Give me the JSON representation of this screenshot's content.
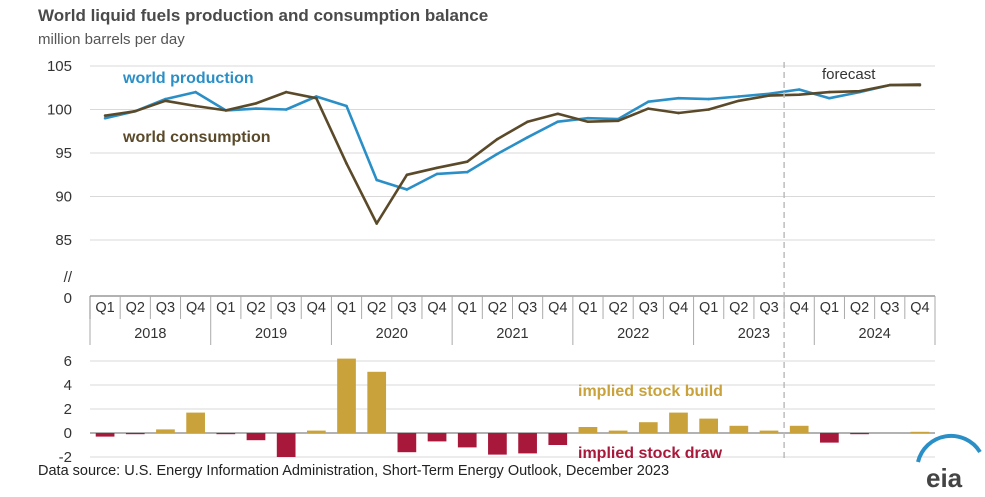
{
  "title": "World liquid fuels production and consumption balance",
  "subtitle": "million barrels per day",
  "source": "Data source: U.S. Energy Information Administration, Short-Term Energy Outlook, December 2023",
  "logo_text": "eia",
  "colors": {
    "production": "#2b8fc7",
    "consumption": "#5a4a2a",
    "build": "#c9a23c",
    "draw": "#a8183b",
    "grid": "#d9d9d9",
    "forecast_line": "#b8b8b8"
  },
  "chart_data": [
    {
      "type": "line",
      "ylim": [
        85,
        105
      ],
      "yticks": [
        "105",
        "100",
        "95",
        "90",
        "85"
      ],
      "break_label": "//",
      "zero_label": "0",
      "categories": [
        "Q1",
        "Q2",
        "Q3",
        "Q4",
        "Q1",
        "Q2",
        "Q3",
        "Q4",
        "Q1",
        "Q2",
        "Q3",
        "Q4",
        "Q1",
        "Q2",
        "Q3",
        "Q4",
        "Q1",
        "Q2",
        "Q3",
        "Q4",
        "Q1",
        "Q2",
        "Q3",
        "Q4",
        "Q1",
        "Q2",
        "Q3",
        "Q4"
      ],
      "years": [
        "2018",
        "2019",
        "2020",
        "2021",
        "2022",
        "2023",
        "2024"
      ],
      "forecast_label": "forecast",
      "forecast_start_index": 23,
      "series": [
        {
          "name": "world production",
          "values": [
            99.0,
            99.8,
            101.2,
            102.0,
            99.9,
            100.1,
            100.0,
            101.5,
            100.4,
            91.9,
            90.8,
            92.6,
            92.8,
            94.9,
            96.8,
            98.6,
            99.0,
            98.9,
            100.9,
            101.3,
            101.2,
            101.5,
            101.8,
            102.3,
            101.3,
            102.0,
            102.8,
            102.9
          ]
        },
        {
          "name": "world consumption",
          "values": [
            99.3,
            99.8,
            101.0,
            100.4,
            99.9,
            100.7,
            102.0,
            101.3,
            93.8,
            86.9,
            92.5,
            93.3,
            94.0,
            96.6,
            98.6,
            99.5,
            98.6,
            98.7,
            100.1,
            99.6,
            100.0,
            101.0,
            101.6,
            101.7,
            102.0,
            102.1,
            102.8,
            102.8
          ]
        }
      ]
    },
    {
      "type": "bar",
      "ylim": [
        -2,
        6
      ],
      "yticks": [
        "6",
        "4",
        "2",
        "0",
        "-2"
      ],
      "categories": [
        "Q1",
        "Q2",
        "Q3",
        "Q4",
        "Q1",
        "Q2",
        "Q3",
        "Q4",
        "Q1",
        "Q2",
        "Q3",
        "Q4",
        "Q1",
        "Q2",
        "Q3",
        "Q4",
        "Q1",
        "Q2",
        "Q3",
        "Q4",
        "Q1",
        "Q2",
        "Q3",
        "Q4",
        "Q1",
        "Q2",
        "Q3",
        "Q4"
      ],
      "values": [
        -0.3,
        -0.1,
        0.3,
        1.7,
        -0.1,
        -0.6,
        -2.0,
        0.2,
        6.2,
        5.1,
        -1.6,
        -0.7,
        -1.2,
        -1.8,
        -1.7,
        -1.0,
        0.5,
        0.2,
        0.9,
        1.7,
        1.2,
        0.6,
        0.2,
        0.6,
        -0.8,
        -0.1,
        0.0,
        0.1
      ],
      "legend_build": "implied stock  build",
      "legend_draw": "implied stock draw"
    }
  ]
}
